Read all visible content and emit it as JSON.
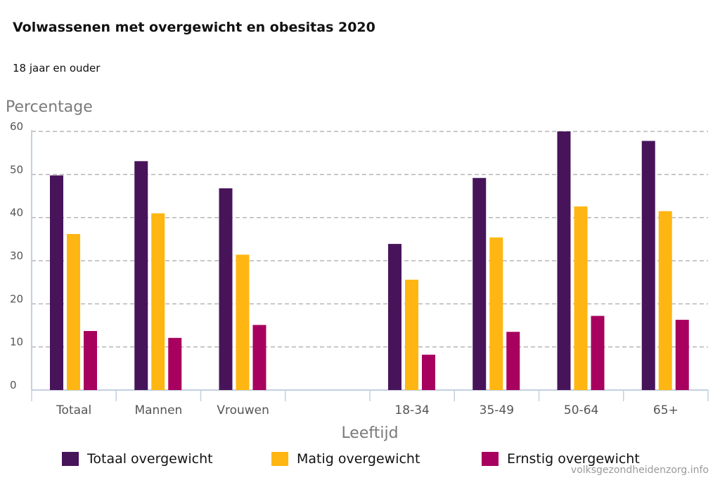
{
  "chart_data": {
    "type": "bar",
    "title": "Volwassenen met overgewicht en obesitas 2020",
    "subtitle": "18 jaar en ouder",
    "ylabel": "Percentage",
    "xlabel": "Leeftijd",
    "ylim": [
      0,
      60
    ],
    "yticks": [
      0,
      10,
      20,
      30,
      40,
      50,
      60
    ],
    "grid": true,
    "legend_position": "bottom",
    "categories": [
      "Totaal",
      "Mannen",
      "Vrouwen",
      "",
      "18-34",
      "35-49",
      "50-64",
      "65+"
    ],
    "series": [
      {
        "name": "Totaal overgewicht",
        "color": "#47145a",
        "values": [
          49.8,
          53.1,
          46.8,
          null,
          33.9,
          49.2,
          60.0,
          57.8
        ]
      },
      {
        "name": "Matig overgewicht",
        "color": "#ffb612",
        "values": [
          36.2,
          41.0,
          31.4,
          null,
          25.6,
          35.4,
          42.6,
          41.5
        ]
      },
      {
        "name": "Ernstig overgewicht",
        "color": "#a8005e",
        "values": [
          13.7,
          12.1,
          15.1,
          null,
          8.2,
          13.5,
          17.2,
          16.3
        ]
      }
    ],
    "source": "volksgezondheidenzorg.info"
  }
}
